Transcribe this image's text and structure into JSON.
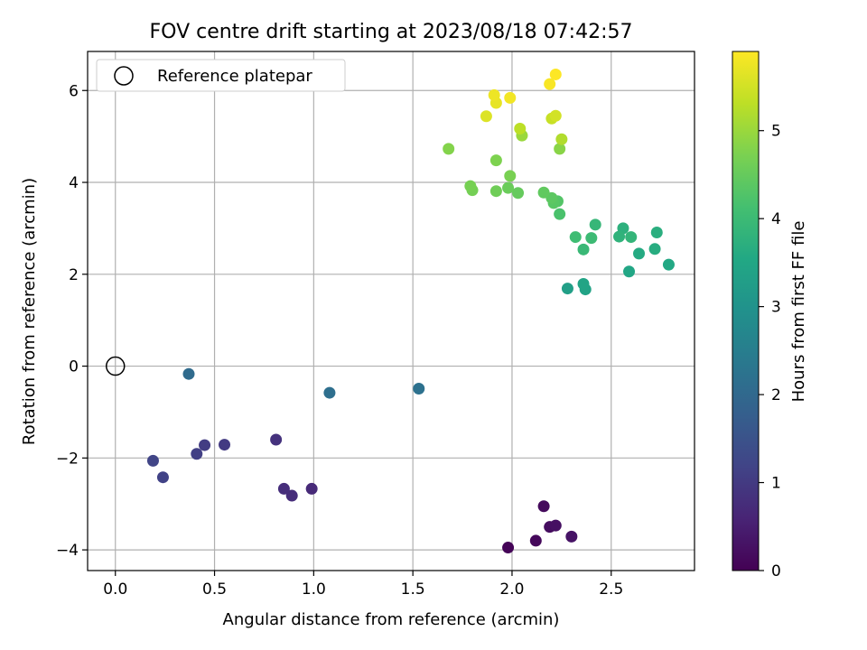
{
  "chart_data": {
    "type": "scatter",
    "title": "FOV centre drift starting at 2023/08/18 07:42:57",
    "xlabel": "Angular distance from reference (arcmin)",
    "ylabel": "Rotation from reference (arcmin)",
    "xlim": [
      -0.14,
      2.92
    ],
    "ylim": [
      -4.45,
      6.85
    ],
    "x_ticks": [
      0.0,
      0.5,
      1.0,
      1.5,
      2.0,
      2.5
    ],
    "x_tick_labels": [
      "0.0",
      "0.5",
      "1.0",
      "1.5",
      "2.0",
      "2.5"
    ],
    "y_ticks": [
      -4,
      -2,
      0,
      2,
      4,
      6
    ],
    "y_tick_labels": [
      "−4",
      "−2",
      "0",
      "2",
      "4",
      "6"
    ],
    "grid": true,
    "legend": {
      "placement": "top-left",
      "entries": [
        "Reference platepar"
      ]
    },
    "reference_point": {
      "name": "Reference platepar",
      "x": 0.0,
      "y": 0.0
    },
    "colorbar": {
      "label": "Hours from first FF file",
      "range": [
        0,
        5.9
      ],
      "ticks": [
        0,
        1,
        2,
        3,
        4,
        5
      ],
      "tick_labels": [
        "0",
        "1",
        "2",
        "3",
        "4",
        "5"
      ],
      "colormap": "viridis"
    },
    "points": [
      {
        "x": 1.98,
        "y": -3.95,
        "h": 0.05
      },
      {
        "x": 2.12,
        "y": -3.8,
        "h": 0.12
      },
      {
        "x": 2.16,
        "y": -3.05,
        "h": 0.15
      },
      {
        "x": 2.19,
        "y": -3.5,
        "h": 0.2
      },
      {
        "x": 2.22,
        "y": -3.47,
        "h": 0.25
      },
      {
        "x": 2.3,
        "y": -3.71,
        "h": 0.3
      },
      {
        "x": 0.99,
        "y": -2.67,
        "h": 0.7
      },
      {
        "x": 0.89,
        "y": -2.82,
        "h": 0.75
      },
      {
        "x": 0.85,
        "y": -2.67,
        "h": 0.78
      },
      {
        "x": 0.81,
        "y": -1.6,
        "h": 0.85
      },
      {
        "x": 0.55,
        "y": -1.71,
        "h": 1.0
      },
      {
        "x": 0.45,
        "y": -1.72,
        "h": 1.05
      },
      {
        "x": 0.41,
        "y": -1.91,
        "h": 1.1
      },
      {
        "x": 0.24,
        "y": -2.42,
        "h": 1.15
      },
      {
        "x": 0.19,
        "y": -2.06,
        "h": 1.2
      },
      {
        "x": 0.37,
        "y": -0.17,
        "h": 2.05
      },
      {
        "x": 1.08,
        "y": -0.58,
        "h": 2.15
      },
      {
        "x": 1.53,
        "y": -0.49,
        "h": 2.2
      },
      {
        "x": 2.28,
        "y": 1.69,
        "h": 3.3
      },
      {
        "x": 2.37,
        "y": 1.67,
        "h": 3.4
      },
      {
        "x": 2.36,
        "y": 1.79,
        "h": 3.45
      },
      {
        "x": 2.59,
        "y": 2.06,
        "h": 3.5
      },
      {
        "x": 2.79,
        "y": 2.21,
        "h": 3.55
      },
      {
        "x": 2.64,
        "y": 2.45,
        "h": 3.6
      },
      {
        "x": 2.72,
        "y": 2.55,
        "h": 3.65
      },
      {
        "x": 2.73,
        "y": 2.91,
        "h": 3.7
      },
      {
        "x": 2.56,
        "y": 3.0,
        "h": 3.75
      },
      {
        "x": 2.54,
        "y": 2.82,
        "h": 3.8
      },
      {
        "x": 2.6,
        "y": 2.81,
        "h": 3.85
      },
      {
        "x": 2.42,
        "y": 3.08,
        "h": 3.9
      },
      {
        "x": 2.36,
        "y": 2.54,
        "h": 3.95
      },
      {
        "x": 2.4,
        "y": 2.79,
        "h": 4.0
      },
      {
        "x": 2.32,
        "y": 2.81,
        "h": 4.05
      },
      {
        "x": 2.24,
        "y": 3.31,
        "h": 4.2
      },
      {
        "x": 2.23,
        "y": 3.59,
        "h": 4.3
      },
      {
        "x": 2.21,
        "y": 3.55,
        "h": 4.35
      },
      {
        "x": 2.2,
        "y": 3.66,
        "h": 4.4
      },
      {
        "x": 2.16,
        "y": 3.78,
        "h": 4.45
      },
      {
        "x": 2.03,
        "y": 3.77,
        "h": 4.5
      },
      {
        "x": 1.98,
        "y": 3.88,
        "h": 4.55
      },
      {
        "x": 1.92,
        "y": 3.81,
        "h": 4.6
      },
      {
        "x": 1.8,
        "y": 3.83,
        "h": 4.65
      },
      {
        "x": 1.79,
        "y": 3.92,
        "h": 4.68
      },
      {
        "x": 1.99,
        "y": 4.14,
        "h": 4.7
      },
      {
        "x": 1.92,
        "y": 4.48,
        "h": 4.75
      },
      {
        "x": 1.68,
        "y": 4.73,
        "h": 4.8
      },
      {
        "x": 2.24,
        "y": 4.73,
        "h": 4.85
      },
      {
        "x": 2.05,
        "y": 5.02,
        "h": 5.0
      },
      {
        "x": 2.25,
        "y": 4.94,
        "h": 5.2
      },
      {
        "x": 2.04,
        "y": 5.17,
        "h": 5.3
      },
      {
        "x": 2.2,
        "y": 5.39,
        "h": 5.4
      },
      {
        "x": 2.22,
        "y": 5.45,
        "h": 5.5
      },
      {
        "x": 1.87,
        "y": 5.44,
        "h": 5.6
      },
      {
        "x": 1.92,
        "y": 5.73,
        "h": 5.7
      },
      {
        "x": 1.91,
        "y": 5.9,
        "h": 5.75
      },
      {
        "x": 1.99,
        "y": 5.84,
        "h": 5.8
      },
      {
        "x": 2.19,
        "y": 6.14,
        "h": 5.85
      },
      {
        "x": 2.22,
        "y": 6.35,
        "h": 5.9
      }
    ]
  }
}
